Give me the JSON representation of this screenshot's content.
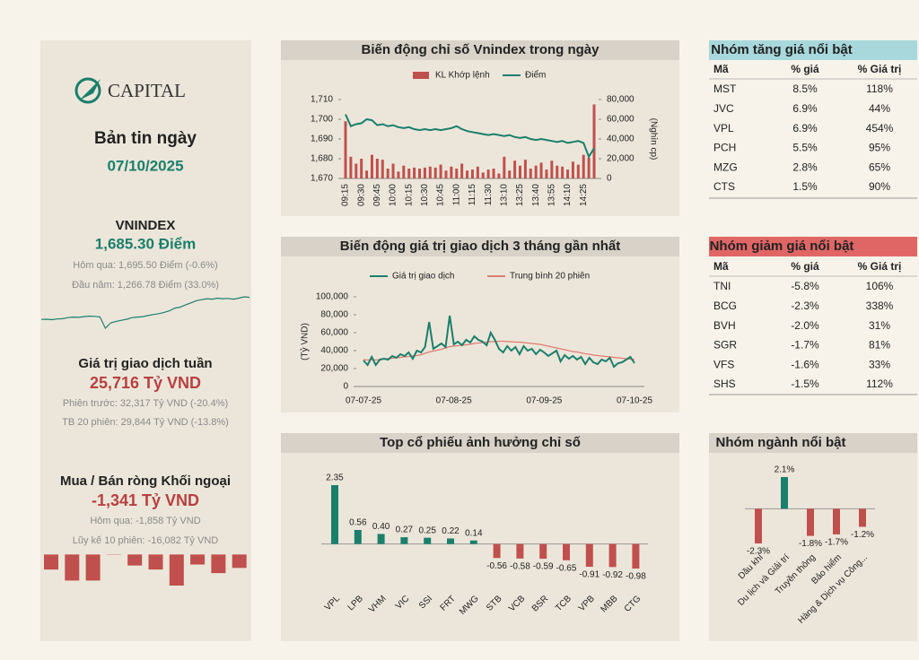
{
  "sidebar": {
    "logo": "CAPITAL",
    "title": "Bản tin ngày",
    "date": "07/10/2025",
    "vnindex": {
      "label": "VNINDEX",
      "value": "1,685.30 Điểm",
      "prev": "Hôm qua: 1,695.50 Điểm (-0.6%)",
      "ytd": "Đầu năm: 1,266.78 Điểm (33.0%)"
    },
    "turnover": {
      "label": "Giá trị giao dịch tuần",
      "value": "25,716 Tỷ VND",
      "prev": "Phiên trước: 32,317 Tỷ VND (-20.4%)",
      "avg": "TB 20 phiên: 29,844 Tỷ VND (-13.8%)"
    },
    "foreign": {
      "label": "Mua / Bán ròng Khối ngoại",
      "value": "-1,341 Tỷ VND",
      "prev": "Hôm qua: -1,858 Tỷ VND",
      "cum": "Lũy kế 10 phiên: -16,082 Tỷ VND"
    }
  },
  "chart_data": [
    {
      "type": "line",
      "color": "#1a7f6b",
      "values": [
        1266,
        1270,
        1262,
        1275,
        1280,
        1300,
        1310,
        1305,
        1320,
        1330,
        1325,
        1315,
        1100,
        1200,
        1230,
        1250,
        1270,
        1300,
        1310,
        1320,
        1340,
        1360,
        1375,
        1400,
        1430,
        1480,
        1500,
        1540,
        1580,
        1620,
        1640,
        1660,
        1650,
        1670,
        1660,
        1665,
        1650,
        1670,
        1695,
        1685
      ]
    },
    {
      "type": "bar",
      "color": "#c0504d",
      "values": [
        -1500,
        -2600,
        -2600,
        30,
        -1100,
        -1500,
        -3100,
        -1000,
        -1858,
        -1341
      ]
    },
    {
      "type": "combo",
      "title": "Biến động chỉ số Vnindex trong ngày",
      "categories": [
        "09:15",
        null,
        null,
        "09:30",
        null,
        null,
        "09:45",
        null,
        null,
        "10:00",
        null,
        null,
        "10:15",
        null,
        null,
        "10:30",
        null,
        null,
        "10:45",
        null,
        null,
        "11:00",
        null,
        null,
        "11:15",
        null,
        null,
        "11:30",
        null,
        null,
        "13:10",
        null,
        null,
        "13:25",
        null,
        null,
        "13:40",
        null,
        null,
        "13:55",
        null,
        null,
        "14:10",
        null,
        null,
        "14:25",
        null,
        null
      ],
      "series": [
        {
          "name": "KL Khớp lệnh",
          "type": "bar",
          "axis": "y2",
          "color": "#c0504d",
          "values": [
            58000,
            22000,
            15000,
            20000,
            8000,
            24000,
            20000,
            19000,
            10000,
            15000,
            7000,
            13000,
            10000,
            11000,
            10000,
            11000,
            12000,
            11000,
            14000,
            8000,
            12000,
            10000,
            15000,
            8000,
            9000,
            12000,
            6000,
            9000,
            10000,
            5000,
            22000,
            8000,
            18000,
            13000,
            19000,
            10000,
            13000,
            16000,
            9000,
            18000,
            13000,
            12000,
            9000,
            17000,
            14000,
            24000,
            21000,
            75000
          ]
        },
        {
          "name": "Điểm",
          "type": "line",
          "color": "#1a7f6b",
          "values": [
            1702.5,
            1696.5,
            1697.5,
            1698,
            1700,
            1699.5,
            1697,
            1697.5,
            1696.5,
            1697,
            1696,
            1695.5,
            1696,
            1695,
            1694.5,
            1695,
            1694.5,
            1695,
            1694.5,
            1695,
            1695.5,
            1696.5,
            1695,
            1694,
            1693.5,
            1693,
            1692.5,
            1692,
            1692.5,
            1692,
            1691.5,
            1692,
            1691,
            1690.5,
            1691,
            1690,
            1689.5,
            1690,
            1689.5,
            1689,
            1688.5,
            1689,
            1688,
            1688.5,
            1689,
            1688,
            1681,
            1685.3
          ]
        }
      ],
      "ylim": [
        1670,
        1710
      ],
      "yticks": [
        {
          "value": 1670,
          "label": "1,670"
        },
        {
          "value": 1680,
          "label": "1,680"
        },
        {
          "value": 1690,
          "label": "1,690"
        },
        {
          "value": 1700,
          "label": "1,700"
        },
        {
          "value": 1710,
          "label": "1,710"
        }
      ],
      "y2lim": [
        0,
        80000
      ],
      "y2ticks": [
        0,
        {
          "value": 20000,
          "label": "20,000"
        },
        {
          "value": 40000,
          "label": "40,000"
        },
        {
          "value": 60000,
          "label": "60,000"
        },
        {
          "value": 80000,
          "label": "80,000"
        }
      ],
      "y2_label": "(Nghìn cp)"
    },
    {
      "type": "line",
      "title": "Biến động giá trị giao dịch 3 tháng gần nhất",
      "y_label": "(Tỷ VND)",
      "categories": [
        "07-07-25",
        null,
        null,
        null,
        null,
        null,
        null,
        null,
        null,
        null,
        null,
        null,
        null,
        null,
        null,
        null,
        null,
        null,
        null,
        null,
        null,
        null,
        "07-08-25",
        null,
        null,
        null,
        null,
        null,
        null,
        null,
        null,
        null,
        null,
        null,
        null,
        null,
        null,
        null,
        null,
        null,
        null,
        null,
        null,
        null,
        "07-09-25",
        null,
        null,
        null,
        null,
        null,
        null,
        null,
        null,
        null,
        null,
        null,
        null,
        null,
        null,
        null,
        null,
        null,
        null,
        null,
        null,
        null,
        "07-10-25"
      ],
      "series": [
        {
          "name": "Giá trị giao dịch",
          "color": "#1a7f6b",
          "values": [
            29000,
            24000,
            33000,
            24000,
            30000,
            31000,
            30000,
            34000,
            32000,
            36000,
            34000,
            38000,
            31000,
            40000,
            38000,
            44000,
            72000,
            42000,
            45000,
            48000,
            44000,
            79000,
            47000,
            50000,
            46000,
            52000,
            49000,
            56000,
            52000,
            50000,
            46000,
            60000,
            52000,
            42000,
            38000,
            45000,
            40000,
            44000,
            36000,
            45000,
            40000,
            42000,
            36000,
            41000,
            38000,
            34000,
            37000,
            40000,
            28000,
            35000,
            31000,
            34000,
            30000,
            33000,
            25000,
            32000,
            27000,
            25000,
            30000,
            28000,
            32000,
            22000,
            26000,
            27000,
            30000,
            33000,
            26000
          ]
        },
        {
          "name": "Trung bình 20 phiên",
          "color": "#e07b73",
          "values": [
            30000,
            29500,
            30000,
            29500,
            30000,
            30500,
            31000,
            31500,
            32000,
            32500,
            33000,
            33500,
            34000,
            34500,
            35500,
            37000,
            38500,
            39500,
            40500,
            41500,
            43000,
            44500,
            45000,
            45500,
            46000,
            46500,
            47000,
            48000,
            48500,
            49000,
            49500,
            50000,
            50000,
            50500,
            50500,
            50000,
            50000,
            49500,
            49500,
            49000,
            48500,
            48000,
            47500,
            47000,
            46000,
            45000,
            44000,
            43000,
            42000,
            41000,
            40000,
            39000,
            38500,
            37500,
            36500,
            36000,
            35000,
            34500,
            34000,
            33500,
            33000,
            32500,
            32000,
            31500,
            31000,
            30500,
            30000
          ]
        }
      ],
      "ylim": [
        0,
        100000
      ],
      "yticks": [
        0,
        {
          "value": 20000,
          "label": "20,000"
        },
        {
          "value": 40000,
          "label": "40,000"
        },
        {
          "value": 60000,
          "label": "60,000"
        },
        {
          "value": 80000,
          "label": "80,000"
        },
        {
          "value": 100000,
          "label": "100,000"
        }
      ]
    },
    {
      "type": "bar",
      "title": "Top cổ phiếu ảnh hưởng chỉ số",
      "color": "#1a7f6b",
      "negative_color": "#c0504d",
      "categories": [
        "VPL",
        "LPB",
        "VHM",
        "VIC",
        "SSI",
        "FRT",
        "MWG",
        "STB",
        "VCB",
        "BSR",
        "TCB",
        "VPB",
        "MBB",
        "CTG"
      ],
      "values": [
        2.35,
        0.56,
        0.4,
        0.27,
        0.25,
        0.22,
        0.14,
        -0.56,
        -0.58,
        -0.59,
        -0.65,
        -0.91,
        -0.92,
        -0.98
      ],
      "value_labels": [
        "2.35",
        "0.56",
        "0.40",
        "0.27",
        "0.25",
        "0.22",
        "0.14",
        "-0.56",
        "-0.58",
        "-0.59",
        "-0.65",
        "-0.91",
        "-0.92",
        "-0.98"
      ]
    },
    {
      "type": "bar",
      "title": "Nhóm ngành nổi bật",
      "color": "#1a7f6b",
      "negative_color": "#c0504d",
      "categories": [
        "Dầu khí",
        "Du lịch và Giải trí",
        "Truyền thông",
        "Bảo hiểm",
        "Hàng & Dịch vụ Công..."
      ],
      "values": [
        -2.3,
        2.1,
        -1.8,
        -1.7,
        -1.2
      ],
      "value_labels": [
        "-2.3%",
        "2.1%",
        "-1.8%",
        "-1.7%",
        "-1.2%"
      ]
    }
  ],
  "top_gainers": {
    "title": "Nhóm tăng giá nổi bật",
    "columns": [
      "Mã",
      "% giá",
      "% Giá trị"
    ],
    "rows": [
      [
        "MST",
        "8.5%",
        "118%"
      ],
      [
        "JVC",
        "6.9%",
        "44%"
      ],
      [
        "VPL",
        "6.9%",
        "454%"
      ],
      [
        "PCH",
        "5.5%",
        "95%"
      ],
      [
        "MZG",
        "2.8%",
        "65%"
      ],
      [
        "CTS",
        "1.5%",
        "90%"
      ]
    ]
  },
  "top_losers": {
    "title": "Nhóm giảm giá nổi bật",
    "columns": [
      "Mã",
      "% giá",
      "% Giá trị"
    ],
    "rows": [
      [
        "TNI",
        "-5.8%",
        "106%"
      ],
      [
        "BCG",
        "-2.3%",
        "338%"
      ],
      [
        "BVH",
        "-2.0%",
        "31%"
      ],
      [
        "SGR",
        "-1.7%",
        "81%"
      ],
      [
        "VFS",
        "-1.6%",
        "33%"
      ],
      [
        "SHS",
        "-1.5%",
        "112%"
      ]
    ]
  }
}
